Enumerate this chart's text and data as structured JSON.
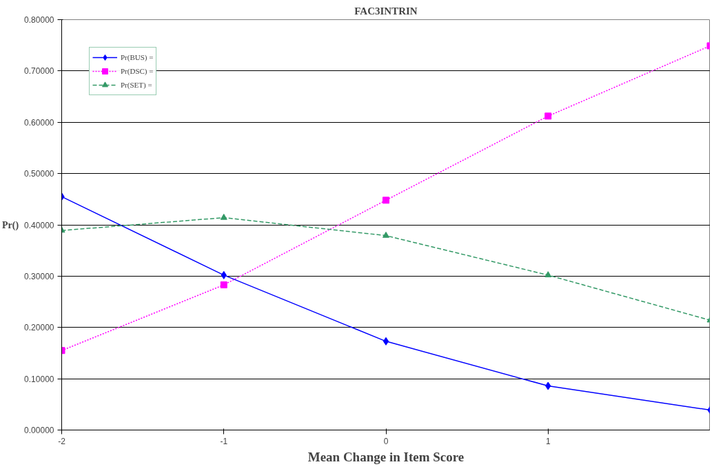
{
  "chart_data": {
    "type": "line",
    "title": "FAC3INTRIN",
    "xlabel": "Mean Change in Item Score",
    "ylabel": "Pr()",
    "x": [
      -2,
      -1,
      0,
      1,
      2
    ],
    "xlim": [
      -2,
      2
    ],
    "xticks": [
      -2,
      -1,
      0,
      1
    ],
    "ylim": [
      0,
      0.8
    ],
    "yticks": [
      {
        "value": 0,
        "label": "0.00000"
      },
      {
        "value": 0.1,
        "label": "0.10000"
      },
      {
        "value": 0.2,
        "label": "0.20000"
      },
      {
        "value": 0.3,
        "label": "0.30000"
      },
      {
        "value": 0.4,
        "label": "0.40000"
      },
      {
        "value": 0.5,
        "label": "0.50000"
      },
      {
        "value": 0.6,
        "label": "0.60000"
      },
      {
        "value": 0.7,
        "label": "0.70000"
      },
      {
        "value": 0.8,
        "label": "0.80000"
      }
    ],
    "grid": "y",
    "legend": "top left",
    "series": [
      {
        "name": "Pr(BUS) =",
        "color": "#0000ff",
        "marker": "diamond",
        "line_style": "solid",
        "values": [
          0.455,
          0.302,
          0.173,
          0.086,
          0.039
        ]
      },
      {
        "name": "Pr(DSC) =",
        "color": "#ff00ff",
        "marker": "square",
        "line_style": "dotted",
        "values": [
          0.155,
          0.283,
          0.448,
          0.612,
          0.749
        ]
      },
      {
        "name": "Pr(SET) =",
        "color": "#339966",
        "marker": "triangle",
        "line_style": "dashed",
        "values": [
          0.389,
          0.414,
          0.379,
          0.302,
          0.214
        ]
      }
    ]
  }
}
